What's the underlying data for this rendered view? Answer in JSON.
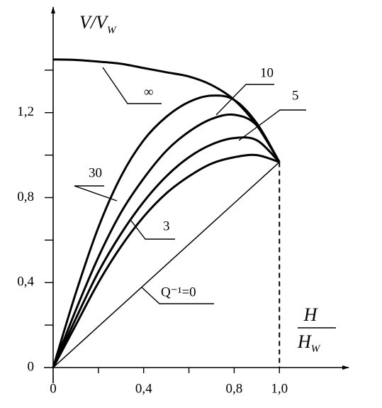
{
  "chart_data": {
    "type": "line",
    "y_label": {
      "text": "V/V",
      "sub": "W"
    },
    "x_label": {
      "numerator": "H",
      "denominator": "H",
      "sub": "W"
    },
    "x": [
      0,
      0.1,
      0.2,
      0.3,
      0.4,
      0.5,
      0.6,
      0.7,
      0.8,
      0.9,
      1.0
    ],
    "series": [
      {
        "name": "∞",
        "color": "#000",
        "linewidth": 3,
        "values": [
          1.45,
          1.448,
          1.44,
          1.43,
          1.41,
          1.39,
          1.37,
          1.33,
          1.26,
          1.14,
          0.967
        ]
      },
      {
        "name": "30",
        "color": "#000",
        "linewidth": 3,
        "values": [
          0,
          0.35,
          0.66,
          0.9,
          1.07,
          1.18,
          1.25,
          1.28,
          1.26,
          1.15,
          0.967
        ]
      },
      {
        "name": "10",
        "color": "#000",
        "linewidth": 3,
        "values": [
          0,
          0.27,
          0.52,
          0.73,
          0.89,
          1.02,
          1.11,
          1.17,
          1.19,
          1.14,
          0.967
        ]
      },
      {
        "name": "5",
        "color": "#000",
        "linewidth": 3,
        "values": [
          0,
          0.23,
          0.45,
          0.63,
          0.78,
          0.9,
          0.99,
          1.05,
          1.08,
          1.07,
          0.967
        ]
      },
      {
        "name": "3",
        "color": "#000",
        "linewidth": 3,
        "values": [
          0,
          0.2,
          0.4,
          0.57,
          0.71,
          0.82,
          0.9,
          0.96,
          0.99,
          1.0,
          0.967
        ]
      },
      {
        "name": "Q⁻¹=0",
        "color": "#000",
        "linewidth": 1.5,
        "values": [
          0,
          0.0967,
          0.1934,
          0.2901,
          0.3868,
          0.4835,
          0.5802,
          0.6769,
          0.7736,
          0.8703,
          0.967
        ]
      }
    ],
    "xlim": [
      0,
      1.3
    ],
    "ylim": [
      0,
      1.68
    ],
    "xticks": [
      0,
      {
        "value": 0.4,
        "label": "0,4"
      },
      {
        "value": 0.8,
        "label": "0,8"
      },
      {
        "value": 1.0,
        "label": "1,0"
      }
    ],
    "yticks": [
      0,
      {
        "value": 0.4,
        "label": "0,4"
      },
      {
        "value": 0.8,
        "label": "0,8"
      },
      {
        "value": 1.2,
        "label": "1,2"
      }
    ],
    "xminor": [
      0.2,
      0.6
    ],
    "yminor": [
      0.2,
      0.6,
      1.0,
      1.4
    ],
    "grid": false
  }
}
